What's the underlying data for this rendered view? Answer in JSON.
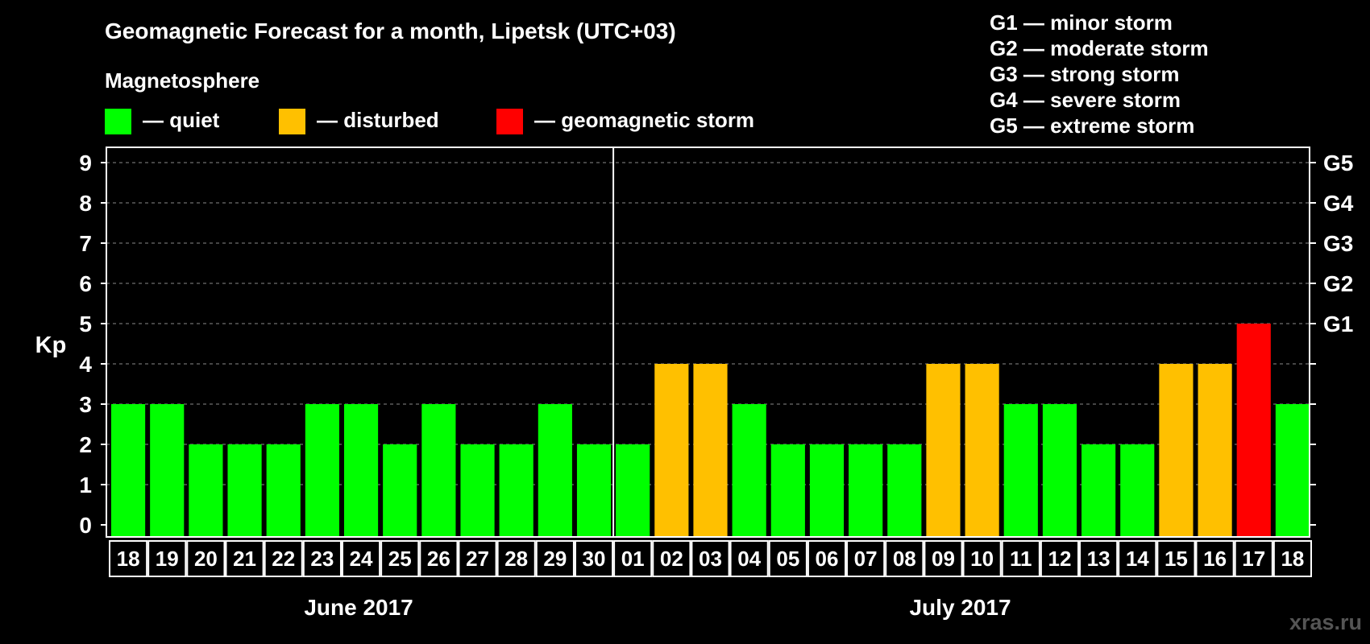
{
  "chart_data": {
    "type": "bar",
    "title": "Geomagnetic Forecast for a month, Lipetsk (UTC+03)",
    "subtitle": "Magnetosphere",
    "ylabel": "Kp",
    "ylim": [
      0,
      9
    ],
    "yticks": [
      0,
      1,
      2,
      3,
      4,
      5,
      6,
      7,
      8,
      9
    ],
    "grid": "horizontal dashed",
    "categories": [
      "18",
      "19",
      "20",
      "21",
      "22",
      "23",
      "24",
      "25",
      "26",
      "27",
      "28",
      "29",
      "30",
      "01",
      "02",
      "03",
      "04",
      "05",
      "06",
      "07",
      "08",
      "09",
      "10",
      "11",
      "12",
      "13",
      "14",
      "15",
      "16",
      "17",
      "18"
    ],
    "values": [
      3,
      3,
      2,
      2,
      2,
      3,
      3,
      2,
      3,
      2,
      2,
      3,
      2,
      2,
      4,
      4,
      3,
      2,
      2,
      2,
      2,
      4,
      4,
      3,
      3,
      2,
      2,
      4,
      4,
      5,
      3
    ],
    "levels": [
      "quiet",
      "quiet",
      "quiet",
      "quiet",
      "quiet",
      "quiet",
      "quiet",
      "quiet",
      "quiet",
      "quiet",
      "quiet",
      "quiet",
      "quiet",
      "quiet",
      "disturbed",
      "disturbed",
      "quiet",
      "quiet",
      "quiet",
      "quiet",
      "quiet",
      "disturbed",
      "disturbed",
      "quiet",
      "quiet",
      "quiet",
      "quiet",
      "disturbed",
      "disturbed",
      "storm",
      "quiet"
    ],
    "months": [
      {
        "label": "June 2017",
        "start": 0,
        "end": 12
      },
      {
        "label": "July 2017",
        "start": 13,
        "end": 30
      }
    ],
    "legend": [
      {
        "key": "quiet",
        "label": "— quiet",
        "color": "#00ff00"
      },
      {
        "key": "disturbed",
        "label": "— disturbed",
        "color": "#ffc000"
      },
      {
        "key": "storm",
        "label": "— geomagnetic storm",
        "color": "#ff0000"
      }
    ],
    "right_axis": [
      {
        "kp": 5,
        "label": "G1"
      },
      {
        "kp": 6,
        "label": "G2"
      },
      {
        "kp": 7,
        "label": "G3"
      },
      {
        "kp": 8,
        "label": "G4"
      },
      {
        "kp": 9,
        "label": "G5"
      }
    ],
    "storm_scale": [
      "G1 — minor storm",
      "G2 — moderate storm",
      "G3 — strong storm",
      "G4 — severe storm",
      "G5 — extreme storm"
    ],
    "watermark": "xras.ru"
  }
}
